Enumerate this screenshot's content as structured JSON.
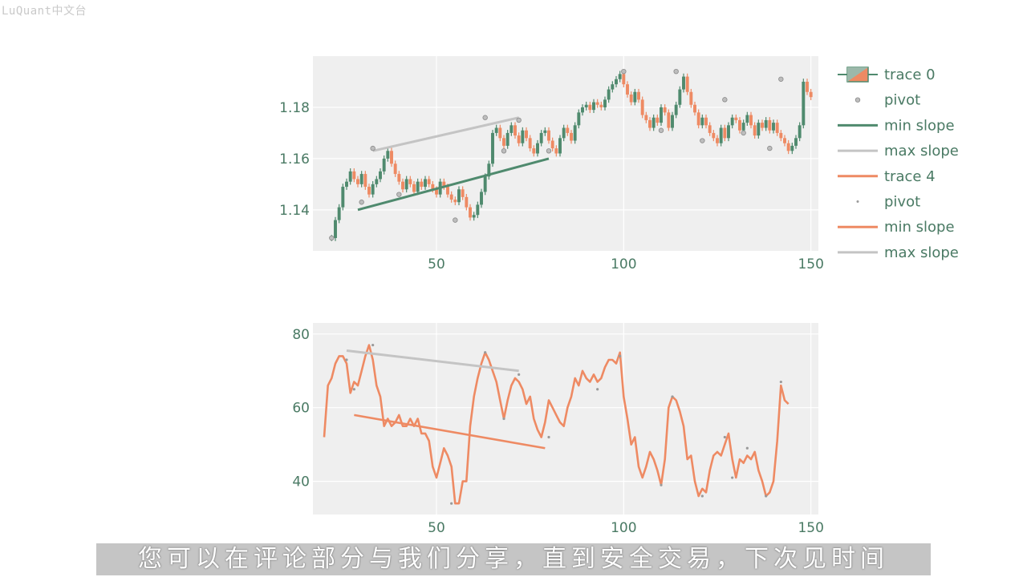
{
  "watermark": "LuQuant中文台",
  "subtitle": "您可以在评论部分与我们分享，直到安全交易，下次见时间",
  "colors": {
    "green": "#4f8a6e",
    "orange": "#ee8a63",
    "gray": "#c4c4c4",
    "plot_bg": "#efefef",
    "grid": "#ffffff",
    "tick_text": "#4a7a64"
  },
  "chart_data": [
    {
      "type": "candlestick",
      "xlim": [
        17,
        152
      ],
      "ylim": [
        1.124,
        1.2
      ],
      "xticks": [
        "50",
        "100",
        "150"
      ],
      "yticks": [
        "1.14",
        "1.16",
        "1.18"
      ],
      "grid": true,
      "legend_placement": "right",
      "close": [
        1.129,
        1.136,
        1.141,
        1.149,
        1.151,
        1.155,
        1.152,
        1.15,
        1.154,
        1.149,
        1.146,
        1.15,
        1.152,
        1.155,
        1.16,
        1.163,
        1.158,
        1.154,
        1.151,
        1.148,
        1.152,
        1.15,
        1.147,
        1.151,
        1.149,
        1.152,
        1.15,
        1.148,
        1.146,
        1.151,
        1.149,
        1.146,
        1.144,
        1.143,
        1.148,
        1.145,
        1.141,
        1.137,
        1.138,
        1.142,
        1.147,
        1.153,
        1.158,
        1.17,
        1.172,
        1.168,
        1.165,
        1.17,
        1.173,
        1.169,
        1.166,
        1.171,
        1.168,
        1.164,
        1.162,
        1.166,
        1.17,
        1.171,
        1.167,
        1.164,
        1.162,
        1.168,
        1.172,
        1.17,
        1.167,
        1.173,
        1.178,
        1.18,
        1.181,
        1.179,
        1.182,
        1.181,
        1.18,
        1.183,
        1.187,
        1.189,
        1.191,
        1.193,
        1.189,
        1.185,
        1.182,
        1.186,
        1.183,
        1.177,
        1.175,
        1.172,
        1.176,
        1.174,
        1.18,
        1.178,
        1.172,
        1.177,
        1.181,
        1.187,
        1.192,
        1.186,
        1.181,
        1.178,
        1.173,
        1.176,
        1.173,
        1.17,
        1.168,
        1.166,
        1.172,
        1.168,
        1.173,
        1.176,
        1.175,
        1.171,
        1.174,
        1.177,
        1.173,
        1.169,
        1.174,
        1.172,
        1.175,
        1.171,
        1.174,
        1.17,
        1.168,
        1.166,
        1.163,
        1.165,
        1.168,
        1.173,
        1.19,
        1.186,
        1.184
      ],
      "pivots": [
        {
          "x": 22,
          "y": 1.129
        },
        {
          "x": 33,
          "y": 1.164
        },
        {
          "x": 30,
          "y": 1.143
        },
        {
          "x": 40,
          "y": 1.146
        },
        {
          "x": 55,
          "y": 1.136
        },
        {
          "x": 63,
          "y": 1.176
        },
        {
          "x": 68,
          "y": 1.163
        },
        {
          "x": 72,
          "y": 1.175
        },
        {
          "x": 80,
          "y": 1.163
        },
        {
          "x": 100,
          "y": 1.194
        },
        {
          "x": 110,
          "y": 1.171
        },
        {
          "x": 114,
          "y": 1.194
        },
        {
          "x": 121,
          "y": 1.167
        },
        {
          "x": 127,
          "y": 1.183
        },
        {
          "x": 132,
          "y": 1.17
        },
        {
          "x": 139,
          "y": 1.164
        },
        {
          "x": 142,
          "y": 1.191
        }
      ],
      "min_slope": {
        "x": [
          29,
          80
        ],
        "y": [
          1.14,
          1.16
        ]
      },
      "max_slope": {
        "x": [
          33,
          72
        ],
        "y": [
          1.163,
          1.176
        ]
      }
    },
    {
      "type": "line",
      "xlim": [
        17,
        152
      ],
      "ylim": [
        31,
        83
      ],
      "xticks": [
        "50",
        "100",
        "150"
      ],
      "yticks": [
        "40",
        "60",
        "80"
      ],
      "grid": true,
      "x_start": 20,
      "values": [
        52,
        66,
        68,
        72,
        74,
        74,
        72,
        64,
        67,
        66,
        70,
        74,
        77,
        73,
        66,
        63,
        55,
        57,
        55,
        56,
        58,
        55,
        55,
        57,
        55,
        57,
        53,
        53,
        51,
        44,
        41,
        45,
        49,
        47,
        44,
        34,
        34,
        40,
        40,
        55,
        63,
        68,
        72,
        75,
        73,
        70,
        67,
        62,
        57,
        62,
        66,
        68,
        67,
        65,
        61,
        63,
        57,
        54,
        52,
        56,
        62,
        60,
        58,
        56,
        55,
        60,
        63,
        68,
        66,
        70,
        68,
        67,
        69,
        67,
        68,
        71,
        73,
        73,
        72,
        75,
        63,
        57,
        50,
        52,
        44,
        41,
        44,
        48,
        46,
        43,
        39,
        46,
        60,
        63,
        62,
        59,
        55,
        46,
        47,
        40,
        36,
        38,
        37,
        43,
        47,
        48,
        47,
        50,
        53,
        46,
        41,
        46,
        45,
        47,
        46,
        48,
        43,
        40,
        36,
        37,
        40,
        51,
        66,
        62,
        61
      ],
      "pivots": [
        {
          "x": 26,
          "y": 73
        },
        {
          "x": 28,
          "y": 65
        },
        {
          "x": 33,
          "y": 77
        },
        {
          "x": 54,
          "y": 34
        },
        {
          "x": 63,
          "y": 75
        },
        {
          "x": 68,
          "y": 57
        },
        {
          "x": 72,
          "y": 69
        },
        {
          "x": 80,
          "y": 52
        },
        {
          "x": 93,
          "y": 65
        },
        {
          "x": 99,
          "y": 74
        },
        {
          "x": 110,
          "y": 39
        },
        {
          "x": 113,
          "y": 63
        },
        {
          "x": 121,
          "y": 36
        },
        {
          "x": 127,
          "y": 52
        },
        {
          "x": 129,
          "y": 41
        },
        {
          "x": 133,
          "y": 49
        },
        {
          "x": 138,
          "y": 36
        },
        {
          "x": 142,
          "y": 67
        }
      ],
      "min_slope": {
        "x": [
          28,
          79
        ],
        "y": [
          58,
          49
        ]
      },
      "max_slope": {
        "x": [
          26,
          72
        ],
        "y": [
          75.5,
          70
        ]
      }
    }
  ],
  "legend": [
    {
      "label": "trace 0",
      "symbol": "candle"
    },
    {
      "label": "pivot",
      "symbol": "pivot-gray"
    },
    {
      "label": "min slope",
      "symbol": "line-green"
    },
    {
      "label": "max slope",
      "symbol": "line-gray"
    },
    {
      "label": "trace 4",
      "symbol": "line-orange"
    },
    {
      "label": "pivot",
      "symbol": "pivot-small"
    },
    {
      "label": "min slope",
      "symbol": "line-orange"
    },
    {
      "label": "max slope",
      "symbol": "line-gray"
    }
  ]
}
